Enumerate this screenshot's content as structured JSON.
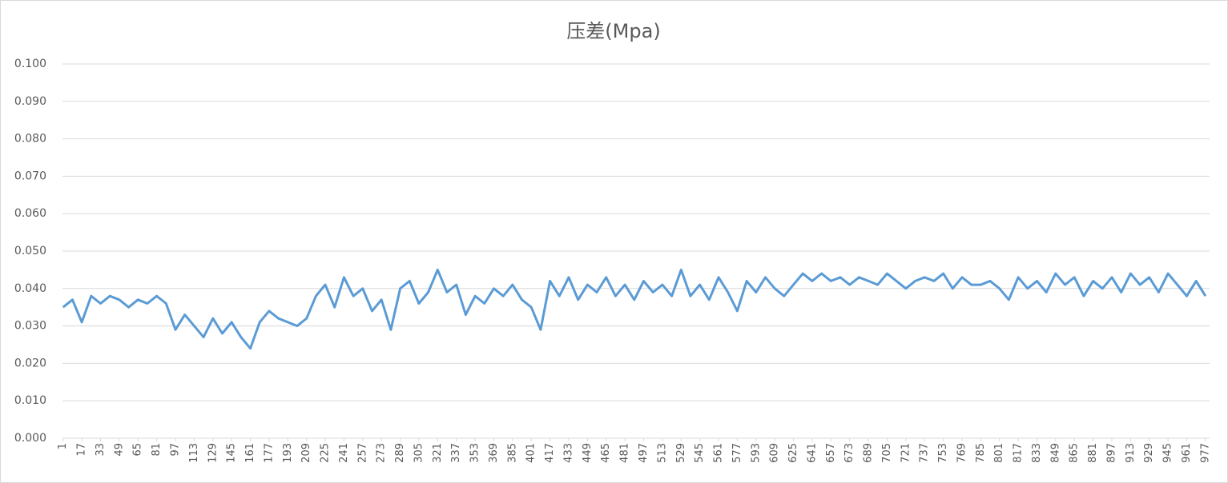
{
  "chart_data": {
    "type": "line",
    "title": "压差(Mpa)",
    "x": [
      1,
      9,
      17,
      25,
      33,
      41,
      49,
      57,
      65,
      73,
      81,
      89,
      97,
      105,
      113,
      121,
      129,
      137,
      145,
      153,
      161,
      169,
      177,
      185,
      193,
      201,
      209,
      217,
      225,
      233,
      241,
      249,
      257,
      265,
      273,
      281,
      289,
      297,
      305,
      313,
      321,
      329,
      337,
      345,
      353,
      361,
      369,
      377,
      385,
      393,
      401,
      409,
      417,
      425,
      433,
      441,
      449,
      457,
      465,
      473,
      481,
      489,
      497,
      505,
      513,
      521,
      529,
      537,
      545,
      553,
      561,
      569,
      577,
      585,
      593,
      601,
      609,
      617,
      625,
      633,
      641,
      649,
      657,
      665,
      673,
      681,
      689,
      697,
      705,
      713,
      721,
      729,
      737,
      745,
      753,
      761,
      769,
      777,
      785,
      793,
      801,
      809,
      817,
      825,
      833,
      841,
      849,
      857,
      865,
      873,
      881,
      889,
      897,
      905,
      913,
      921,
      929,
      937,
      945,
      953,
      961,
      969,
      977
    ],
    "series": [
      {
        "name": "压差(Mpa)",
        "color": "#5b9bd5",
        "values": [
          0.035,
          0.037,
          0.031,
          0.038,
          0.036,
          0.038,
          0.037,
          0.035,
          0.037,
          0.036,
          0.038,
          0.036,
          0.029,
          0.033,
          0.03,
          0.027,
          0.032,
          0.028,
          0.031,
          0.027,
          0.024,
          0.031,
          0.034,
          0.032,
          0.031,
          0.03,
          0.032,
          0.038,
          0.041,
          0.035,
          0.043,
          0.038,
          0.04,
          0.034,
          0.037,
          0.029,
          0.04,
          0.042,
          0.036,
          0.039,
          0.045,
          0.039,
          0.041,
          0.033,
          0.038,
          0.036,
          0.04,
          0.038,
          0.041,
          0.037,
          0.035,
          0.029,
          0.042,
          0.038,
          0.043,
          0.037,
          0.041,
          0.039,
          0.043,
          0.038,
          0.041,
          0.037,
          0.042,
          0.039,
          0.041,
          0.038,
          0.045,
          0.038,
          0.041,
          0.037,
          0.043,
          0.039,
          0.034,
          0.042,
          0.039,
          0.043,
          0.04,
          0.038,
          0.041,
          0.044,
          0.042,
          0.044,
          0.042,
          0.043,
          0.041,
          0.043,
          0.042,
          0.041,
          0.044,
          0.042,
          0.04,
          0.042,
          0.043,
          0.042,
          0.044,
          0.04,
          0.043,
          0.041,
          0.041,
          0.042,
          0.04,
          0.037,
          0.043,
          0.04,
          0.042,
          0.039,
          0.044,
          0.041,
          0.043,
          0.038,
          0.042,
          0.04,
          0.043,
          0.039,
          0.044,
          0.041,
          0.043,
          0.039,
          0.044,
          0.041,
          0.038,
          0.042,
          0.038
        ]
      }
    ],
    "xlim": [
      0.5,
      980.5
    ],
    "xticks": [
      1,
      17,
      33,
      49,
      65,
      81,
      97,
      113,
      129,
      145,
      161,
      177,
      193,
      209,
      225,
      241,
      257,
      273,
      289,
      305,
      321,
      337,
      353,
      369,
      385,
      401,
      417,
      433,
      449,
      465,
      481,
      497,
      513,
      529,
      545,
      561,
      577,
      593,
      609,
      625,
      641,
      657,
      673,
      689,
      705,
      721,
      737,
      753,
      769,
      785,
      801,
      817,
      833,
      849,
      865,
      881,
      897,
      913,
      929,
      945,
      961,
      977
    ],
    "ylim": [
      0,
      0.1
    ],
    "yticks": [
      {
        "value": 0,
        "label": "0.000"
      },
      {
        "value": 0.01,
        "label": "0.010"
      },
      {
        "value": 0.02,
        "label": "0.020"
      },
      {
        "value": 0.03,
        "label": "0.030"
      },
      {
        "value": 0.04,
        "label": "0.040"
      },
      {
        "value": 0.05,
        "label": "0.050"
      },
      {
        "value": 0.06,
        "label": "0.060"
      },
      {
        "value": 0.07,
        "label": "0.070"
      },
      {
        "value": 0.08,
        "label": "0.080"
      },
      {
        "value": 0.09,
        "label": "0.090"
      },
      {
        "value": 0.1,
        "label": "0.100"
      }
    ],
    "grid": true
  }
}
